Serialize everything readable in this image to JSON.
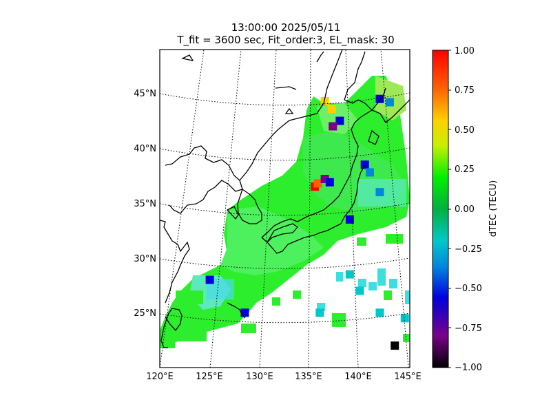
{
  "title_time": "13:00:00 2025/05/11",
  "title_params": "T_fit = 3600 sec, Fit_order:3, EL_mask: 30",
  "lat_labels": [
    "45°N",
    "40°N",
    "35°N",
    "30°N",
    "25°N"
  ],
  "lon_labels": [
    "120°E",
    "125°E",
    "130°E",
    "135°E",
    "140°E",
    "145°E"
  ],
  "colorbar": {
    "label": "dTEC (TECU)",
    "ticks": [
      "1.00",
      "0.75",
      "0.50",
      "0.25",
      "0.00",
      "−0.25",
      "−0.50",
      "−0.75",
      "−1.00"
    ]
  },
  "chart_data": {
    "type": "heatmap",
    "map_extent": {
      "lon": [
        120,
        145
      ],
      "lat": [
        20,
        49
      ]
    },
    "value_range": [
      -1.0,
      1.0
    ],
    "colormap": "nipy_spectral",
    "cells": [
      [
        135.5,
        36.5,
        0.9
      ],
      [
        135.8,
        36.8,
        0.85
      ],
      [
        136.5,
        37.2,
        -0.7
      ],
      [
        137.0,
        36.9,
        -0.6
      ],
      [
        137.2,
        43.6,
        0.6
      ],
      [
        136.5,
        44.3,
        0.5
      ],
      [
        142.0,
        44.5,
        -0.5
      ],
      [
        143.0,
        44.2,
        -0.4
      ],
      [
        140.5,
        38.5,
        -0.5
      ],
      [
        141.0,
        37.8,
        -0.4
      ],
      [
        142.0,
        36.0,
        -0.35
      ],
      [
        139.0,
        33.5,
        -0.5
      ],
      [
        138.0,
        42.5,
        -0.6
      ],
      [
        137.3,
        42.0,
        -0.7
      ],
      [
        128.5,
        25.0,
        -0.5
      ],
      [
        125.0,
        28.0,
        -0.5
      ],
      [
        143.5,
        22.0,
        -0.95
      ],
      [
        136.0,
        25.0,
        -0.15
      ],
      [
        140.0,
        27.0,
        -0.2
      ],
      [
        142.0,
        25.0,
        -0.2
      ],
      [
        139.0,
        28.5,
        -0.2
      ],
      [
        144.5,
        24.5,
        -0.1
      ]
    ]
  }
}
